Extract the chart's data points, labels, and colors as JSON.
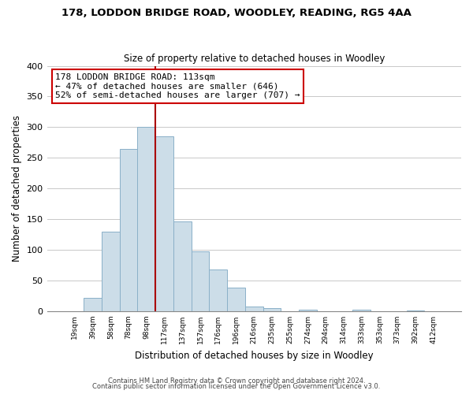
{
  "title1": "178, LODDON BRIDGE ROAD, WOODLEY, READING, RG5 4AA",
  "title2": "Size of property relative to detached houses in Woodley",
  "xlabel": "Distribution of detached houses by size in Woodley",
  "ylabel": "Number of detached properties",
  "bar_labels": [
    "19sqm",
    "39sqm",
    "58sqm",
    "78sqm",
    "98sqm",
    "117sqm",
    "137sqm",
    "157sqm",
    "176sqm",
    "196sqm",
    "216sqm",
    "235sqm",
    "255sqm",
    "274sqm",
    "294sqm",
    "314sqm",
    "333sqm",
    "353sqm",
    "373sqm",
    "392sqm",
    "412sqm"
  ],
  "bar_heights": [
    0,
    22,
    130,
    265,
    300,
    285,
    147,
    98,
    68,
    38,
    8,
    5,
    0,
    3,
    0,
    0,
    2,
    0,
    0,
    1,
    0
  ],
  "bar_color": "#ccdde8",
  "bar_edge_color": "#8ab0c8",
  "vline_x": 4.5,
  "vline_color": "#aa0000",
  "ylim": [
    0,
    400
  ],
  "yticks": [
    0,
    50,
    100,
    150,
    200,
    250,
    300,
    350,
    400
  ],
  "annotation_title": "178 LODDON BRIDGE ROAD: 113sqm",
  "annotation_line1": "← 47% of detached houses are smaller (646)",
  "annotation_line2": "52% of semi-detached houses are larger (707) →",
  "footer1": "Contains HM Land Registry data © Crown copyright and database right 2024.",
  "footer2": "Contains public sector information licensed under the Open Government Licence v3.0.",
  "bg_color": "#ffffff",
  "plot_bg_color": "#ffffff",
  "grid_color": "#c8c8c8"
}
